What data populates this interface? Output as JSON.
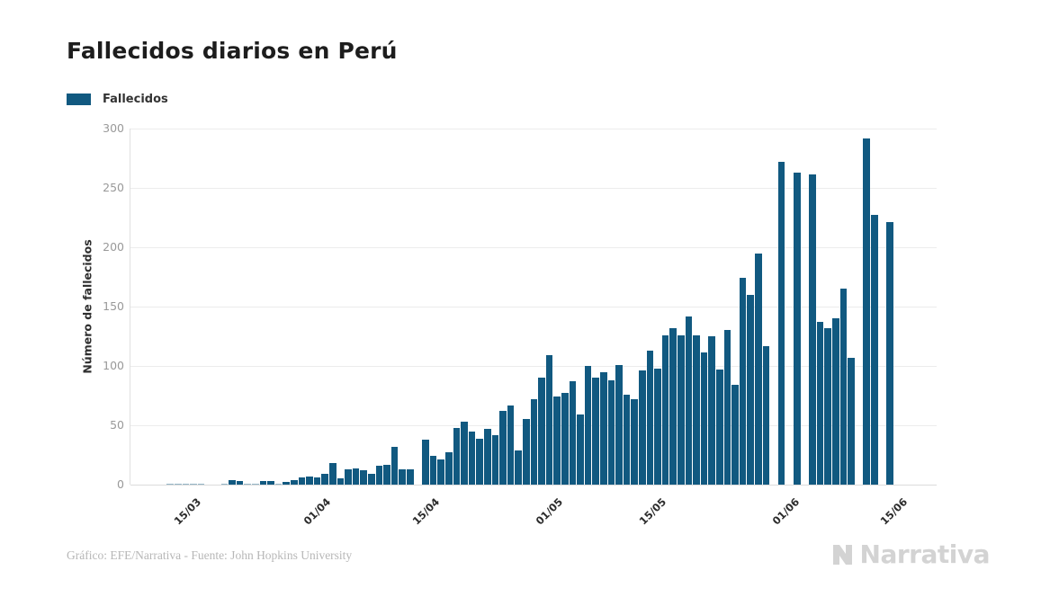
{
  "title": "Fallecidos diarios en Perú",
  "legend": {
    "label": "Fallecidos",
    "swatch_color": "#115980"
  },
  "footer": {
    "credit": "Gráfico: EFE/Narrativa - Fuente: John Hopkins University"
  },
  "brand": {
    "name": "Narrativa"
  },
  "chart_data": {
    "type": "bar",
    "title": "Fallecidos diarios en Perú",
    "series_name": "Fallecidos",
    "xlabel": "",
    "ylabel": "Número de fallecidos",
    "ylim": [
      0,
      300
    ],
    "ytick_step": 50,
    "ytick_labels": [
      "0",
      "50",
      "100",
      "150",
      "200",
      "250",
      "300"
    ],
    "grid": true,
    "legend_position": "top-left",
    "bar_color": "#115980",
    "x_tick_labels": [
      "15/03",
      "01/04",
      "15/04",
      "01/05",
      "15/05",
      "01/06",
      "15/06"
    ],
    "x_tick_bar_index": [
      2.2,
      18.9,
      33,
      49,
      62.3,
      79.5,
      93.5
    ],
    "values": [
      1,
      1,
      1,
      1,
      1,
      0,
      0,
      1,
      4,
      3,
      1,
      1,
      3,
      3,
      1,
      2,
      4,
      6,
      7,
      6,
      9,
      18,
      5,
      13,
      14,
      12,
      9,
      16,
      17,
      32,
      13,
      13,
      0,
      38,
      24,
      21,
      27,
      48,
      53,
      45,
      39,
      47,
      42,
      62,
      67,
      29,
      55,
      72,
      90,
      109,
      74,
      77,
      87,
      59,
      100,
      90,
      95,
      88,
      101,
      76,
      72,
      96,
      113,
      98,
      126,
      132,
      126,
      142,
      126,
      111,
      125,
      97,
      130,
      84,
      174,
      160,
      195,
      117,
      0,
      272,
      0,
      263,
      0,
      261,
      137,
      132,
      140,
      165,
      107,
      0,
      292,
      227,
      0,
      221
    ]
  }
}
